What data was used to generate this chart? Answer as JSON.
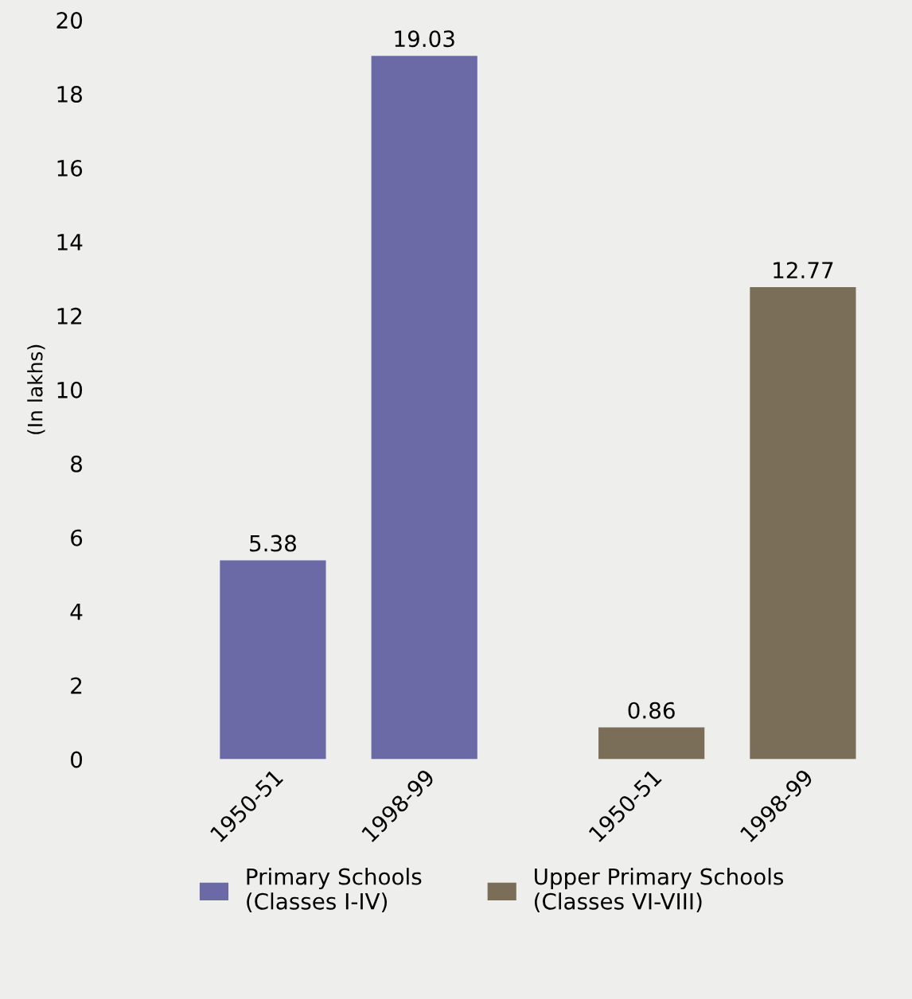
{
  "chart_data": {
    "type": "bar",
    "ylabel": "(In lakhs)",
    "categories": [
      "1950-51",
      "1998-99",
      "1950-51",
      "1998-99"
    ],
    "series": [
      {
        "name": "Primary Schools\n(Classes I-IV)",
        "color": "#6b6aa6",
        "values": [
          5.38,
          19.03,
          null,
          null
        ]
      },
      {
        "name": "Upper Primary Schools\n(Classes VI-VIII)",
        "color": "#7a6e58",
        "values": [
          null,
          null,
          0.86,
          12.77
        ]
      }
    ],
    "ylim": [
      0,
      20
    ],
    "yticks": [
      0,
      2,
      4,
      6,
      8,
      10,
      12,
      14,
      16,
      18,
      20
    ],
    "data_labels": true,
    "grid": false,
    "legend": "bottom"
  }
}
